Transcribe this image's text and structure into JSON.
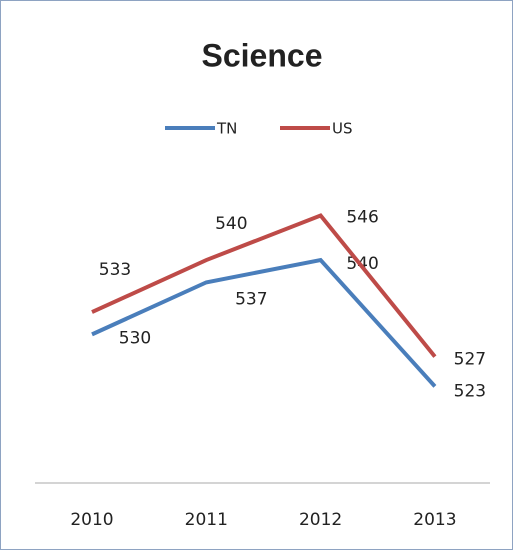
{
  "chart_data": {
    "type": "line",
    "title": "Science",
    "categories": [
      "2010",
      "2011",
      "2012",
      "2013"
    ],
    "series": [
      {
        "name": "TN",
        "color": "#4a7ebb",
        "values": [
          530,
          537,
          540,
          523
        ]
      },
      {
        "name": "US",
        "color": "#be4b48",
        "values": [
          533,
          540,
          546,
          527
        ]
      }
    ],
    "ylim": [
      510,
      555
    ],
    "legend": "top"
  }
}
